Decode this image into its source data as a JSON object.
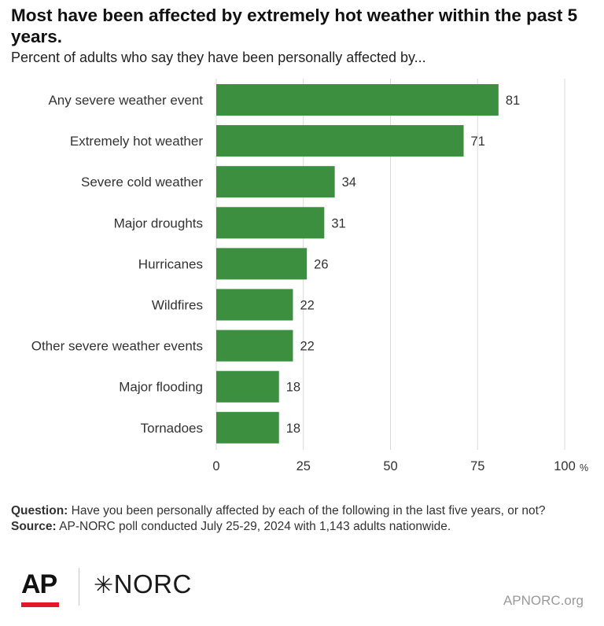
{
  "title": "Most have been affected by extremely hot weather within the past 5 years.",
  "subtitle": "Percent of adults who say they have been personally affected by...",
  "chart_data": {
    "type": "bar",
    "orientation": "horizontal",
    "categories": [
      "Any severe weather event",
      "Extremely hot weather",
      "Severe cold weather",
      "Major droughts",
      "Hurricanes",
      "Wildfires",
      "Other severe weather events",
      "Major flooding",
      "Tornadoes"
    ],
    "values": [
      81,
      71,
      34,
      31,
      26,
      22,
      22,
      18,
      18
    ],
    "xlim": [
      0,
      100
    ],
    "ticks": [
      "0",
      "25",
      "50",
      "75",
      "100"
    ],
    "unit": "%",
    "grid": "vertical",
    "bar_color": "#3b8f3e"
  },
  "footer": {
    "question_label": "Question:",
    "question_text": "Have you been personally affected by each of the following in the last five years, or not?",
    "source_label": "Source:",
    "source_text": "AP-NORC poll conducted July 25-29, 2024 with 1,143 adults nationwide."
  },
  "logos": {
    "ap": "AP",
    "norc": "NORC",
    "norc_mark": "✳"
  },
  "url": "APNORC.org",
  "colors": {
    "accent_red": "#e4162a",
    "bar": "#3b8f3e",
    "grid": "#d9d9d9"
  }
}
